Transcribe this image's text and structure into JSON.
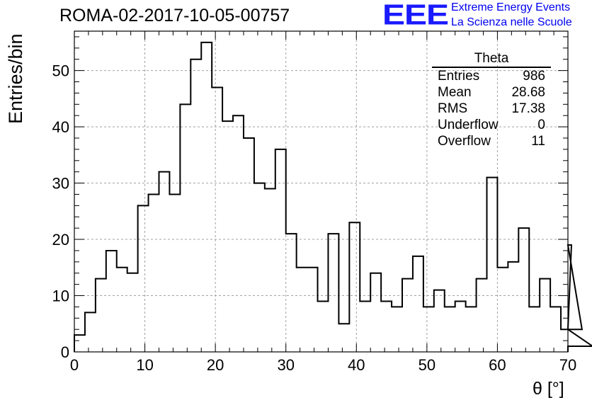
{
  "header": {
    "title": "ROMA-02-2017-10-05-00757",
    "logo_text": "EEE",
    "org_line1": "Extreme Energy Events",
    "org_line2": "La Scienza nelle Scuole"
  },
  "stats": {
    "title": "Theta",
    "rows": [
      {
        "label": "Entries",
        "value": "986"
      },
      {
        "label": "Mean",
        "value": "28.68"
      },
      {
        "label": "RMS",
        "value": "17.38"
      },
      {
        "label": "Underflow",
        "value": "0"
      },
      {
        "label": "Overflow",
        "value": "11"
      }
    ]
  },
  "chart_data": {
    "type": "bar",
    "xlabel": "θ [°]",
    "ylabel": "Entries/bin",
    "xlim": [
      0,
      70
    ],
    "ylim": [
      0,
      57
    ],
    "xticks": [
      0,
      10,
      20,
      30,
      40,
      50,
      60,
      70
    ],
    "yticks": [
      0,
      10,
      20,
      30,
      40,
      50
    ],
    "grid": true,
    "bin_width": 1.5,
    "bin_start": 0,
    "values": [
      3,
      7,
      13,
      18,
      15,
      14,
      26,
      28,
      32,
      28,
      44,
      52,
      55,
      47,
      41,
      42,
      38,
      30,
      29,
      36,
      21,
      15,
      15,
      9,
      21,
      5,
      23,
      9,
      14,
      9,
      8,
      13,
      17,
      8,
      11,
      8,
      9,
      8,
      13,
      31,
      15,
      16,
      22,
      8,
      13,
      8,
      4,
      19,
      4,
      1
    ],
    "colors": {
      "line": "#000000",
      "grid": "#a0a0a0"
    }
  }
}
